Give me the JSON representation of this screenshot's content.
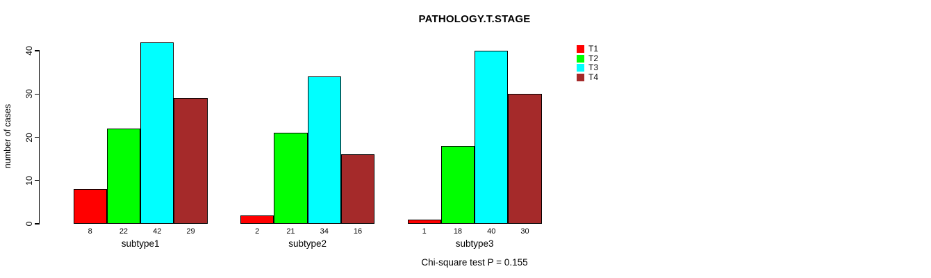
{
  "chart_data": {
    "type": "bar",
    "title": "PATHOLOGY.T.STAGE",
    "ylabel": "number of cases",
    "xlabel": "",
    "categories": [
      "subtype1",
      "subtype2",
      "subtype3"
    ],
    "series": [
      {
        "name": "T1",
        "color": "#FF0000",
        "values": [
          8,
          2,
          1
        ]
      },
      {
        "name": "T2",
        "color": "#00FF00",
        "values": [
          22,
          21,
          18
        ]
      },
      {
        "name": "T3",
        "color": "#00FFFF",
        "values": [
          42,
          34,
          40
        ]
      },
      {
        "name": "T4",
        "color": "#A52A2A",
        "values": [
          29,
          16,
          30
        ]
      }
    ],
    "yticks": [
      0,
      10,
      20,
      30,
      40
    ],
    "ylim": [
      0,
      42
    ],
    "grid": false,
    "legend_position": "right",
    "bar_value_labels_shown": true,
    "annotation": "Chi-square test P = 0.155"
  },
  "colors": {
    "background": "#FFFFFF",
    "axis": "#000000",
    "text": "#000000"
  }
}
